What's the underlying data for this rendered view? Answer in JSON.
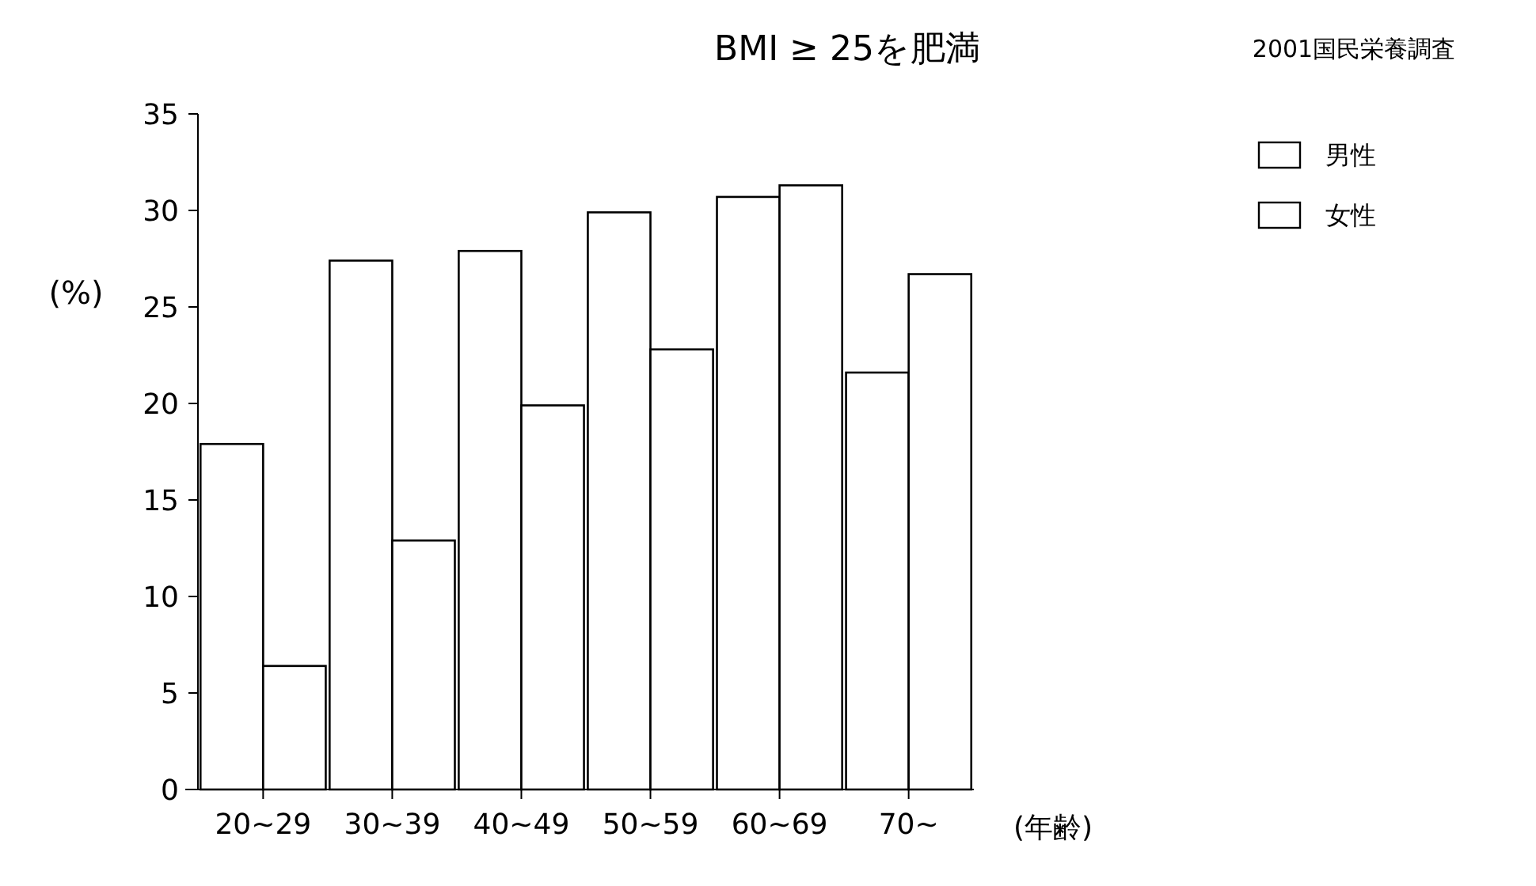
{
  "chart_data": {
    "type": "bar",
    "title": "BMI ≥ 25を肥満",
    "subtitle": "2001国民栄養調査",
    "ylabel": "(%)",
    "xlabel": "(年齢)",
    "categories": [
      "20~29",
      "30~39",
      "40~49",
      "50~59",
      "60~69",
      "70~"
    ],
    "series": [
      {
        "name": "男性",
        "color": "#ffffff",
        "values": [
          17.9,
          27.4,
          27.9,
          29.9,
          30.7,
          21.6
        ]
      },
      {
        "name": "女性",
        "color": "#ffffff",
        "values": [
          6.4,
          12.9,
          19.9,
          22.8,
          31.3,
          26.7
        ]
      }
    ],
    "ylim": [
      0,
      35
    ],
    "yticks": [
      0,
      5,
      10,
      15,
      20,
      25,
      30,
      35
    ],
    "grid": false,
    "legend": "top right"
  }
}
